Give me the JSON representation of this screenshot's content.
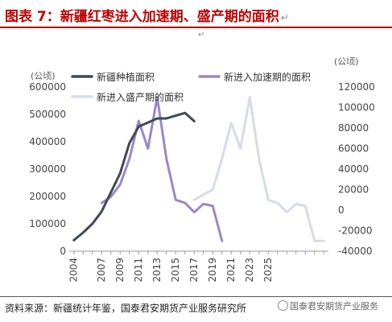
{
  "title": "图表 7：新疆红枣进入加速期、盛产期的面积",
  "title_mark": "↵",
  "para_mark": "↵",
  "footer": "资料来源：新疆统计年鉴，国泰君安期货产业服务研究所",
  "watermark": "国泰君安期货产业服务",
  "chart_data": {
    "type": "line",
    "title": "",
    "left_axis": {
      "unit_label": "(公顷)",
      "ylim": [
        0,
        600000
      ],
      "ticks": [
        0,
        100000,
        200000,
        300000,
        400000,
        500000,
        600000
      ]
    },
    "right_axis": {
      "unit_label": "(公顷)",
      "ylim": [
        -40000,
        120000
      ],
      "ticks": [
        -40000,
        -20000,
        0,
        20000,
        40000,
        60000,
        80000,
        100000,
        120000
      ]
    },
    "x_ticks": [
      "2004",
      "2007",
      "2009",
      "2011",
      "2013",
      "2015",
      "2017",
      "2019",
      "2021",
      "2023",
      "2025"
    ],
    "series": [
      {
        "name": "新疆种植面积",
        "axis": "left",
        "color": "#3d4a57",
        "x": [
          2004,
          2005,
          2006,
          2007,
          2008,
          2009,
          2010,
          2011,
          2012,
          2013,
          2014,
          2015,
          2016,
          2017
        ],
        "values": [
          40000,
          68000,
          100000,
          145000,
          215000,
          285000,
          395000,
          455000,
          470000,
          485000,
          485000,
          495000,
          505000,
          475000
        ]
      },
      {
        "name": "新进入加速期的面积",
        "axis": "right",
        "color": "#9b87c9",
        "x": [
          2007,
          2008,
          2009,
          2010,
          2011,
          2012,
          2013,
          2014,
          2015,
          2016,
          2017,
          2018,
          2019,
          2020
        ],
        "values": [
          7000,
          13000,
          25000,
          50000,
          87000,
          60000,
          110000,
          50000,
          10000,
          7000,
          -2000,
          6000,
          4000,
          -30000
        ]
      },
      {
        "name": "新进入盛产期的面积",
        "axis": "right",
        "color": "#d4dde7",
        "x": [
          2017,
          2018,
          2019,
          2020,
          2021,
          2022,
          2023,
          2024,
          2025,
          2026,
          2027,
          2028,
          2029,
          2030,
          2031
        ],
        "values": [
          10000,
          15000,
          20000,
          50000,
          85000,
          60000,
          110000,
          50000,
          10000,
          7000,
          -2000,
          6000,
          4000,
          -30000,
          -30000
        ]
      }
    ]
  }
}
